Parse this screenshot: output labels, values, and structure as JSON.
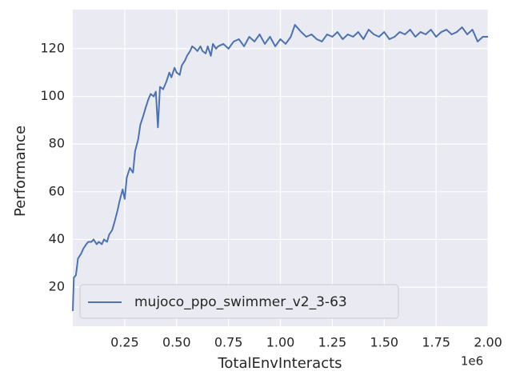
{
  "chart_data": {
    "type": "line",
    "x_label": "TotalEnvInteracts",
    "y_label": "Performance",
    "x_offset_label": "1e6",
    "xlim": [
      0,
      2.0
    ],
    "ylim": [
      3.6,
      136.4
    ],
    "xticks": [
      0.25,
      {
        "value": 0.5,
        "label": "0.50"
      },
      0.75,
      {
        "value": 1.0,
        "label": "1.00"
      },
      1.25,
      {
        "value": 1.5,
        "label": "1.50"
      },
      1.75,
      {
        "value": 2.0,
        "label": "2.00"
      }
    ],
    "yticks": [
      20,
      40,
      60,
      80,
      100,
      120
    ],
    "grid": true,
    "legend": "lower left",
    "x": [
      0.0,
      0.005,
      0.015,
      0.025,
      0.04,
      0.05,
      0.065,
      0.075,
      0.09,
      0.1,
      0.115,
      0.125,
      0.14,
      0.15,
      0.165,
      0.175,
      0.19,
      0.2,
      0.215,
      0.225,
      0.24,
      0.25,
      0.26,
      0.275,
      0.29,
      0.3,
      0.315,
      0.325,
      0.34,
      0.35,
      0.365,
      0.375,
      0.39,
      0.4,
      0.41,
      0.42,
      0.435,
      0.45,
      0.465,
      0.475,
      0.49,
      0.5,
      0.515,
      0.525,
      0.54,
      0.55,
      0.565,
      0.575,
      0.59,
      0.6,
      0.615,
      0.625,
      0.64,
      0.65,
      0.665,
      0.675,
      0.69,
      0.7,
      0.725,
      0.75,
      0.775,
      0.8,
      0.825,
      0.85,
      0.875,
      0.9,
      0.925,
      0.95,
      0.975,
      1.0,
      1.025,
      1.05,
      1.07,
      1.1,
      1.125,
      1.15,
      1.175,
      1.2,
      1.225,
      1.25,
      1.275,
      1.3,
      1.325,
      1.35,
      1.375,
      1.4,
      1.425,
      1.45,
      1.475,
      1.5,
      1.525,
      1.55,
      1.575,
      1.6,
      1.625,
      1.65,
      1.675,
      1.7,
      1.725,
      1.75,
      1.775,
      1.8,
      1.825,
      1.85,
      1.875,
      1.9,
      1.925,
      1.95,
      1.975,
      2.0
    ],
    "series": [
      {
        "name": "mujoco_ppo_swimmer_v2_3-63",
        "color": "#4c72b0",
        "values": [
          10,
          24,
          25,
          32,
          34,
          36,
          38,
          39,
          39,
          40,
          38,
          39,
          38,
          40,
          39,
          42,
          44,
          47,
          52,
          56,
          61,
          57,
          66,
          70,
          68,
          77,
          82,
          88,
          92,
          95,
          99,
          101,
          100,
          102,
          87,
          104,
          103,
          106,
          110,
          108,
          112,
          110,
          109,
          113,
          115,
          117,
          119,
          121,
          120,
          119,
          121,
          119,
          118,
          121,
          117,
          122,
          120,
          121,
          122,
          120,
          123,
          124,
          121,
          125,
          123,
          126,
          122,
          125,
          121,
          124,
          122,
          125,
          130,
          127,
          125,
          126,
          124,
          123,
          126,
          125,
          127,
          124,
          126,
          125,
          127,
          124,
          128,
          126,
          125,
          127,
          124,
          125,
          127,
          126,
          128,
          125,
          127,
          126,
          128,
          125,
          127,
          128,
          126,
          127,
          129,
          126,
          128,
          123,
          125,
          125
        ]
      }
    ]
  }
}
